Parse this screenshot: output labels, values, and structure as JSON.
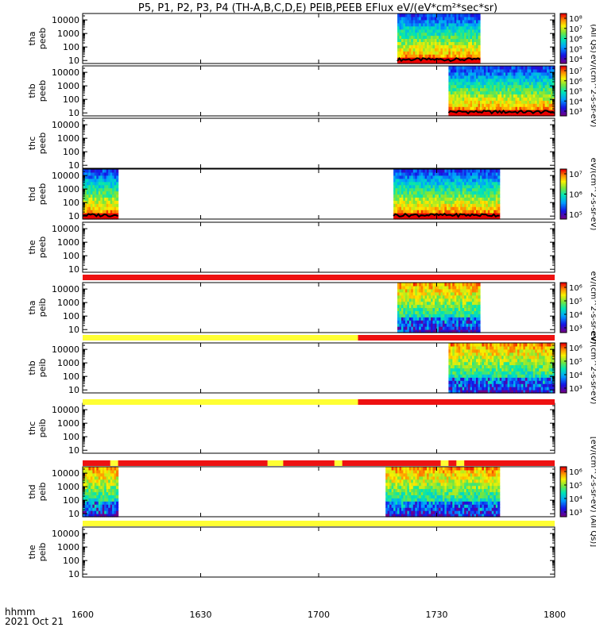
{
  "title": "P5, P1, P2, P3, P4 (TH-A,B,C,D,E) PEIB,PEEB EFlux eV/(eV*cm²*sec*sr)",
  "time_axis": {
    "label_line1": "hhmm",
    "label_line2": "2021 Oct 21",
    "ticks": [
      "1600",
      "1630",
      "1700",
      "1730",
      "1800"
    ]
  },
  "colors": {
    "flag_red": "#ee1111",
    "flag_yellow": "#ffff33",
    "trace": "#000000"
  },
  "chart_data": {
    "type": "heatmap",
    "x_range_minutes": [
      0,
      120
    ],
    "y_scale": "log",
    "panels": [
      {
        "id": "tha_peeb",
        "ylabel1": "tha",
        "ylabel2": "peeb",
        "yticks": [
          "10000",
          "1000",
          "100",
          "10"
        ],
        "ylim": [
          6,
          30000
        ],
        "data_blocks": [
          {
            "start": 80,
            "end": 101
          }
        ],
        "colorbar": {
          "ticks": [
            "10⁸",
            "10⁷",
            "10⁶",
            "10⁵",
            "10⁴"
          ],
          "unit": "(All Qs)",
          "min_exp": 3.5,
          "max_exp": 8
        }
      },
      {
        "id": "thb_peeb",
        "ylabel1": "thb",
        "ylabel2": "peeb",
        "yticks": [
          "10000",
          "1000",
          "100",
          "10"
        ],
        "ylim": [
          6,
          30000
        ],
        "data_blocks": [
          {
            "start": 93,
            "end": 120
          }
        ],
        "colorbar": {
          "ticks": [
            "10⁷",
            "10⁶",
            "10⁵",
            "10⁴",
            "10³"
          ],
          "unit": "eV/(cm^2-s-sr-eV)",
          "min_exp": 3,
          "max_exp": 7.5
        }
      },
      {
        "id": "thc_peeb",
        "ylabel1": "thc",
        "ylabel2": "peeb",
        "yticks": [
          "10000",
          "1000",
          "100",
          "10"
        ],
        "ylim": [
          6,
          30000
        ],
        "data_blocks": [],
        "colorbar": null
      },
      {
        "id": "thd_peeb",
        "ylabel1": "thd",
        "ylabel2": "peeb",
        "yticks": [
          "10000",
          "1000",
          "100",
          "10"
        ],
        "ylim": [
          6,
          30000
        ],
        "data_blocks": [
          {
            "start": 0,
            "end": 9
          },
          {
            "start": 79,
            "end": 106
          }
        ],
        "colorbar": {
          "ticks": [
            "10⁷",
            "10⁶",
            "10⁵"
          ],
          "unit": "eV/(cm^2-s-sr-eV)",
          "min_exp": 4.5,
          "max_exp": 7.8
        }
      },
      {
        "id": "the_peeb",
        "ylabel1": "the",
        "ylabel2": "peeb",
        "yticks": [
          "10000",
          "1000",
          "100",
          "10"
        ],
        "ylim": [
          6,
          30000
        ],
        "data_blocks": [],
        "colorbar": null
      },
      {
        "id": "tha_peib",
        "ylabel1": "tha",
        "ylabel2": "peib",
        "yticks": [
          "10000",
          "1000",
          "100",
          "10"
        ],
        "ylim": [
          6,
          30000
        ],
        "data_blocks": [
          {
            "start": 80,
            "end": 101
          }
        ],
        "colorbar": {
          "ticks": [
            "10⁶",
            "10⁵",
            "10⁴",
            "10³"
          ],
          "unit": "eV/(cm^2-s-sr-eV)",
          "min_exp": 2.5,
          "max_exp": 6.5
        }
      },
      {
        "id": "thb_peib",
        "ylabel1": "thb",
        "ylabel2": "peib",
        "yticks": [
          "10000",
          "1000",
          "100",
          "10"
        ],
        "ylim": [
          6,
          30000
        ],
        "data_blocks": [
          {
            "start": 93,
            "end": 120
          }
        ],
        "colorbar": {
          "ticks": [
            "10⁶",
            "10⁵",
            "10⁴",
            "10³"
          ],
          "unit": "eV/(cm^2-s-sr-eV)",
          "min_exp": 2.5,
          "max_exp": 6.5
        }
      },
      {
        "id": "thc_peib",
        "ylabel1": "thc",
        "ylabel2": "peib",
        "yticks": [
          "10000",
          "1000",
          "100",
          "10"
        ],
        "ylim": [
          6,
          30000
        ],
        "data_blocks": [],
        "colorbar": null
      },
      {
        "id": "thd_peib",
        "ylabel1": "thd",
        "ylabel2": "peib",
        "yticks": [
          "10000",
          "1000",
          "100",
          "10"
        ],
        "ylim": [
          6,
          30000
        ],
        "data_blocks": [
          {
            "start": 0,
            "end": 9
          },
          {
            "start": 77,
            "end": 106
          }
        ],
        "colorbar": {
          "ticks": [
            "10⁶",
            "10⁵",
            "10⁴",
            "10³"
          ],
          "unit": "[eV/(cm^2-s-sr-eV) (All Qs)]",
          "min_exp": 2.5,
          "max_exp": 6.5
        }
      },
      {
        "id": "the_peib",
        "ylabel1": "the",
        "ylabel2": "peib",
        "yticks": [
          "10000",
          "1000",
          "100",
          "10"
        ],
        "ylim": [
          6,
          30000
        ],
        "data_blocks": [],
        "colorbar": null
      }
    ],
    "flag_bars": [
      {
        "after_panel": 4,
        "segments": [
          {
            "start": 0,
            "end": 120,
            "color": "red"
          }
        ]
      },
      {
        "after_panel": 5,
        "segments": [
          {
            "start": 0,
            "end": 70,
            "color": "yellow"
          },
          {
            "start": 70,
            "end": 120,
            "color": "red"
          }
        ]
      },
      {
        "after_panel": 6,
        "segments": [
          {
            "start": 0,
            "end": 70,
            "color": "yellow"
          },
          {
            "start": 70,
            "end": 120,
            "color": "red"
          }
        ]
      },
      {
        "after_panel": 7,
        "segments": [
          {
            "start": 0,
            "end": 120,
            "color": "red"
          },
          {
            "start": 7,
            "end": 9,
            "color": "yellow"
          },
          {
            "start": 47,
            "end": 51,
            "color": "yellow"
          },
          {
            "start": 64,
            "end": 66,
            "color": "yellow"
          },
          {
            "start": 91,
            "end": 93,
            "color": "yellow"
          },
          {
            "start": 95,
            "end": 97,
            "color": "yellow"
          }
        ]
      },
      {
        "after_panel": 8,
        "segments": [
          {
            "start": 0,
            "end": 120,
            "color": "yellow"
          }
        ]
      }
    ]
  }
}
